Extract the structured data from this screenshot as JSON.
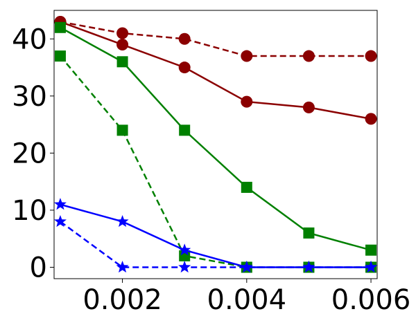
{
  "chart_data": {
    "type": "line",
    "title": "",
    "xlabel": "",
    "ylabel": "",
    "xlim": [
      0.0009,
      0.0061
    ],
    "ylim": [
      -2,
      45
    ],
    "x_ticks": [
      0.002,
      0.004,
      0.006
    ],
    "x_tick_labels": [
      "0.002",
      "0.004",
      "0.006"
    ],
    "y_ticks": [
      0,
      10,
      20,
      30,
      40
    ],
    "y_tick_labels": [
      "0",
      "10",
      "20",
      "30",
      "40"
    ],
    "grid": false,
    "legend": null,
    "series": [
      {
        "color": "#8b0000",
        "marker": "circle",
        "linestyle": "dashed",
        "x": [
          0.001,
          0.002,
          0.003,
          0.004,
          0.005,
          0.006
        ],
        "values": [
          43,
          41,
          40,
          37,
          37,
          37
        ]
      },
      {
        "color": "#8b0000",
        "marker": "circle",
        "linestyle": "solid",
        "x": [
          0.001,
          0.002,
          0.003,
          0.004,
          0.005,
          0.006
        ],
        "values": [
          43,
          39,
          35,
          29,
          28,
          26
        ]
      },
      {
        "color": "#008000",
        "marker": "square",
        "linestyle": "solid",
        "x": [
          0.001,
          0.002,
          0.003,
          0.004,
          0.005,
          0.006
        ],
        "values": [
          42,
          36,
          24,
          14,
          6,
          3
        ]
      },
      {
        "color": "#008000",
        "marker": "square",
        "linestyle": "dashed",
        "x": [
          0.001,
          0.002,
          0.003,
          0.004,
          0.005,
          0.006
        ],
        "values": [
          37,
          24,
          2,
          0,
          0,
          0
        ]
      },
      {
        "color": "#0000ff",
        "marker": "star",
        "linestyle": "solid",
        "x": [
          0.001,
          0.002,
          0.003,
          0.004,
          0.005,
          0.006
        ],
        "values": [
          11,
          8,
          3,
          0,
          0,
          0
        ]
      },
      {
        "color": "#0000ff",
        "marker": "star",
        "linestyle": "dashed",
        "x": [
          0.001,
          0.002,
          0.003,
          0.004,
          0.005,
          0.006
        ],
        "values": [
          8,
          0,
          0,
          0,
          0,
          0
        ]
      }
    ]
  }
}
